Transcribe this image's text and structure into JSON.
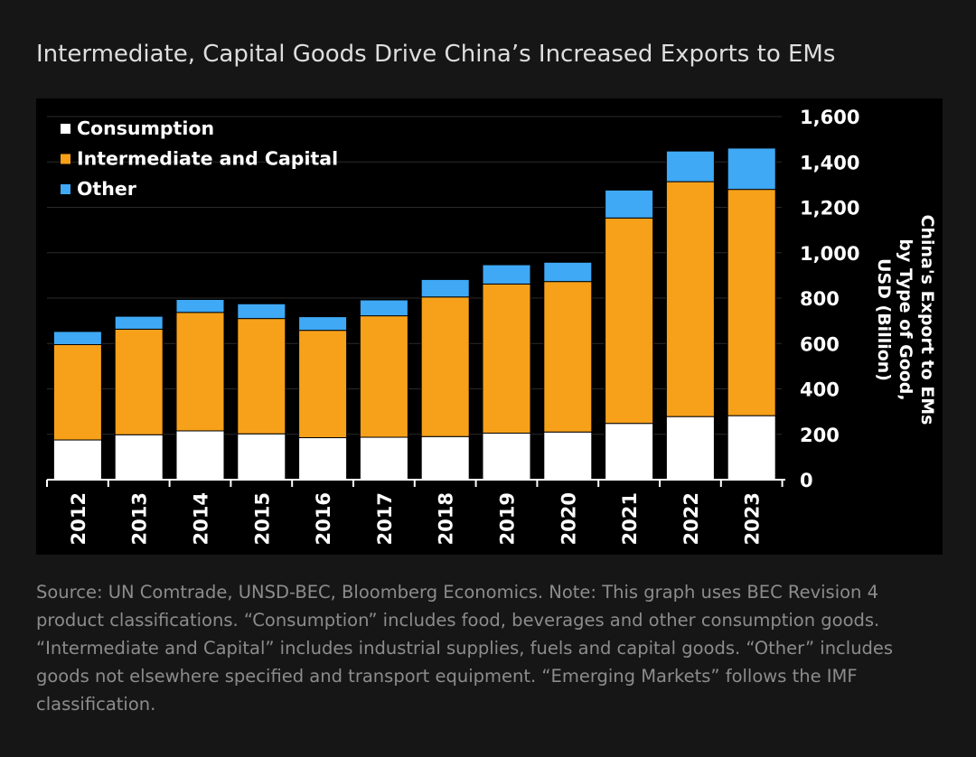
{
  "title": "Intermediate, Capital Goods Drive China’s Increased Exports to EMs",
  "colors": {
    "page_bg": "#161616",
    "chart_bg": "#000000",
    "consumption": "#ffffff",
    "intermediate_capital": "#f7a11a",
    "other": "#3fa9f5",
    "teaser": "#e8962a"
  },
  "chart_data": {
    "type": "bar",
    "stacked": true,
    "categories": [
      "2012",
      "2013",
      "2014",
      "2015",
      "2016",
      "2017",
      "2018",
      "2019",
      "2020",
      "2021",
      "2022",
      "2023"
    ],
    "series": [
      {
        "name": "Consumption",
        "color": "#ffffff",
        "values": [
          175,
          198,
          215,
          202,
          185,
          187,
          190,
          205,
          210,
          248,
          278,
          282
        ]
      },
      {
        "name": "Intermediate and Capital",
        "color": "#f7a11a",
        "values": [
          420,
          465,
          522,
          508,
          473,
          535,
          615,
          657,
          663,
          905,
          1035,
          997
        ]
      },
      {
        "name": "Other",
        "color": "#3fa9f5",
        "values": [
          58,
          57,
          57,
          65,
          60,
          70,
          77,
          85,
          85,
          123,
          135,
          182
        ]
      }
    ],
    "ylabel": "China's Export to EMs by Type of Good, USD (Billion)",
    "ylim": [
      0,
      1600
    ],
    "yticks": [
      0,
      200,
      400,
      600,
      800,
      1000,
      1200,
      1400,
      1600
    ],
    "ytick_labels": [
      "0",
      "200",
      "400",
      "600",
      "800",
      "1,000",
      "1,200",
      "1,400",
      "1,600"
    ],
    "legend_position": "top-left",
    "yaxis_position": "right",
    "grid": true
  },
  "source_note": "Source: UN Comtrade, UNSD-BEC, Bloomberg Economics. Note: This graph uses BEC Revision 4 product classifications. “Consumption” includes food, beverages and other consumption goods. “Intermediate and Capital” includes industrial supplies, fuels and capital goods. “Other” includes goods not elsewhere specified and transport equipment. “Emerging Markets” follows the IMF classification."
}
